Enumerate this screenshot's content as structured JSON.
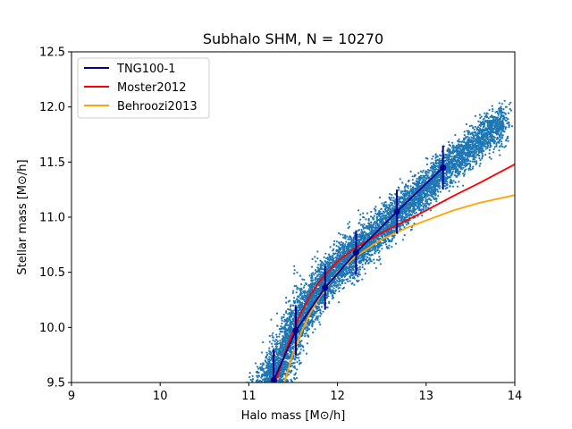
{
  "chart_data": {
    "type": "scatter",
    "title": "Subhalo SHM, N = 10270",
    "xlabel": "Halo mass [M⊙/h]",
    "ylabel": "Stellar mass [M⊙/h]",
    "xlim": [
      9,
      14
    ],
    "ylim": [
      9.5,
      12.5
    ],
    "xticks": [
      "9",
      "10",
      "11",
      "12",
      "13",
      "14"
    ],
    "yticks": [
      "9.5",
      "10.0",
      "10.5",
      "11.0",
      "11.5",
      "12.0",
      "12.5"
    ],
    "grid": false,
    "legend_position": "top-left",
    "scatter": {
      "color": "#1f77b4",
      "count": 10270,
      "relation": [
        [
          11.0,
          9.05
        ],
        [
          11.3,
          9.55
        ],
        [
          11.5,
          9.95
        ],
        [
          11.8,
          10.35
        ],
        [
          12.0,
          10.55
        ],
        [
          12.2,
          10.68
        ],
        [
          12.5,
          10.9
        ],
        [
          12.8,
          11.12
        ],
        [
          13.2,
          11.42
        ],
        [
          13.6,
          11.7
        ],
        [
          13.85,
          11.85
        ]
      ]
    },
    "series": [
      {
        "name": "TNG100-1",
        "color": "#00008b",
        "x": [
          11.28,
          11.53,
          11.86,
          12.21,
          12.67,
          13.19
        ],
        "y": [
          9.52,
          9.97,
          10.36,
          10.68,
          11.05,
          11.45
        ],
        "err": [
          0.28,
          0.22,
          0.2,
          0.2,
          0.2,
          0.2
        ]
      },
      {
        "name": "Moster2012",
        "color": "#ff0000",
        "x": [
          11.3,
          11.4,
          11.5,
          11.6,
          11.7,
          11.8,
          12.0,
          12.2,
          12.5,
          12.8,
          13.0,
          13.3,
          13.6,
          14.0
        ],
        "y": [
          9.5,
          9.75,
          9.97,
          10.15,
          10.3,
          10.42,
          10.6,
          10.72,
          10.86,
          10.98,
          11.06,
          11.19,
          11.31,
          11.48
        ]
      },
      {
        "name": "Behroozi2013",
        "color": "#ffa500",
        "x": [
          11.4,
          11.5,
          11.6,
          11.7,
          11.8,
          12.0,
          12.2,
          12.5,
          12.8,
          13.0,
          13.3,
          13.6,
          14.0
        ],
        "y": [
          9.5,
          9.77,
          9.97,
          10.14,
          10.28,
          10.5,
          10.64,
          10.8,
          10.91,
          10.97,
          11.06,
          11.13,
          11.2
        ]
      }
    ]
  }
}
